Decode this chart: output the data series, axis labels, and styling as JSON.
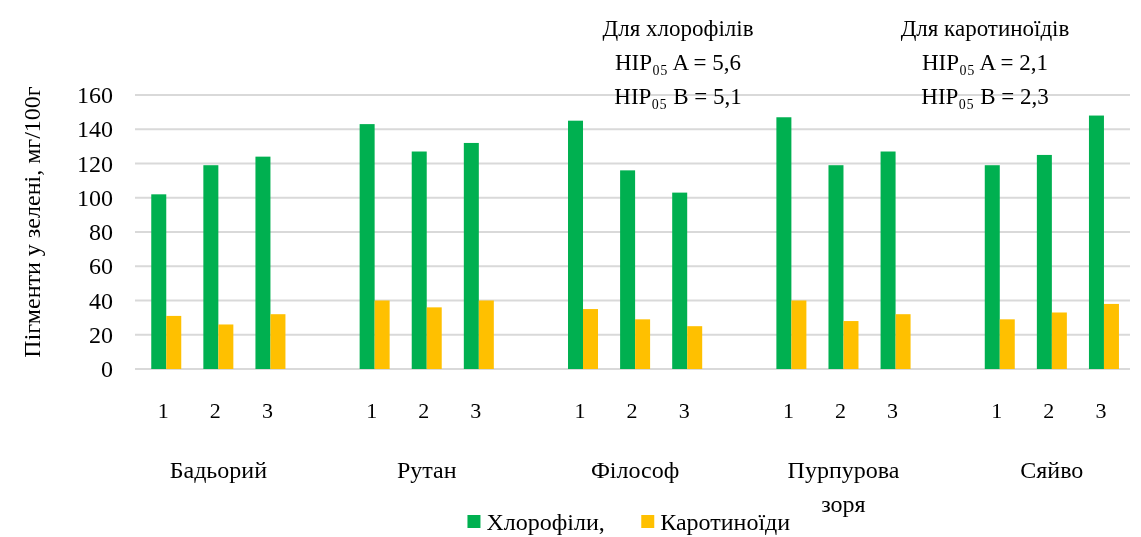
{
  "chart_data": {
    "type": "bar",
    "ylabel": "Пігменти у зелені, мг/100г",
    "categories": [
      "1",
      "2",
      "3",
      "1",
      "2",
      "3",
      "1",
      "2",
      "3",
      "1",
      "2",
      "3",
      "1",
      "2",
      "3"
    ],
    "series": [
      {
        "name": "Хлорофіли,",
        "color": "#00b050",
        "values": [
          102,
          119,
          124,
          143,
          127,
          132,
          145,
          116,
          103,
          147,
          119,
          127,
          119,
          125,
          148
        ]
      },
      {
        "name": "Каротиноїди",
        "color": "#ffc000",
        "values": [
          31,
          26,
          32,
          40,
          36,
          40,
          35,
          29,
          25,
          40,
          28,
          32,
          29,
          33,
          38
        ]
      }
    ],
    "ylim": [
      0,
      160
    ],
    "yticks": [
      0,
      20,
      40,
      60,
      80,
      100,
      120,
      140,
      160
    ],
    "grid": "y",
    "legend": "bottom",
    "annotations": [
      "Для хлорофілів\nHIP₀₅ A = 5,6\nHIP₀₅ B = 5,1",
      "Для каротиноїдів\nHIP₀₅ A = 2,1\nHIP₀₅ B = 2,3",
      "Бадьорий",
      "Рутан",
      "Філософ",
      "Пурпурова зоря",
      "Сяйво"
    ]
  }
}
